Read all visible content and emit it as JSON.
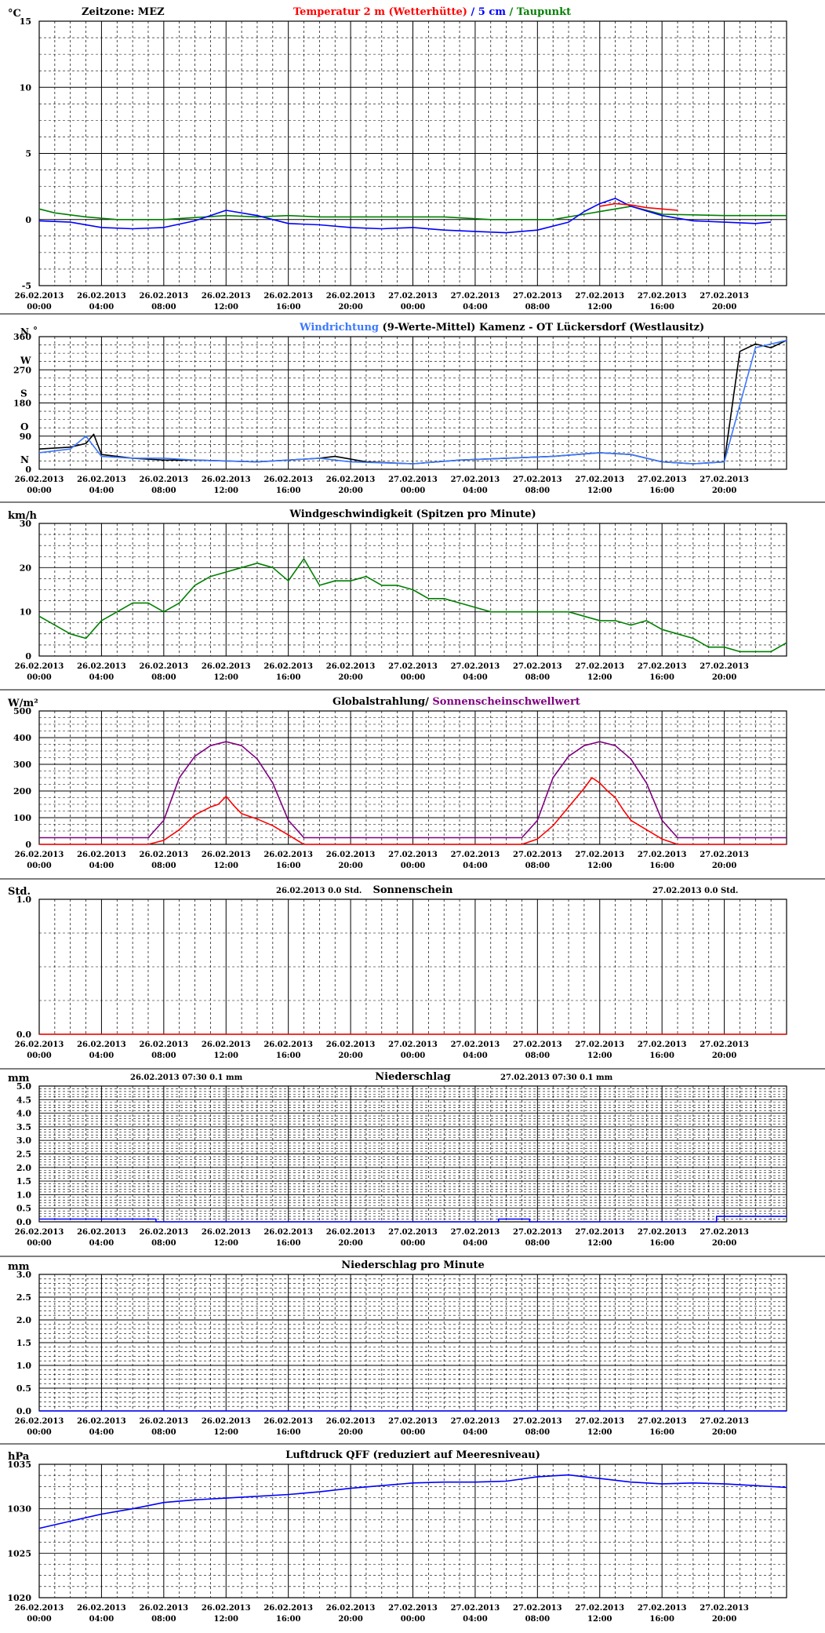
{
  "x_ticks": [
    "26.02.2013\n00:00",
    "26.02.2013\n04:00",
    "26.02.2013\n08:00",
    "26.02.2013\n12:00",
    "26.02.2013\n16:00",
    "26.02.2013\n20:00",
    "27.02.2013\n00:00",
    "27.02.2013\n04:00",
    "27.02.2013\n08:00",
    "27.02.2013\n12:00",
    "27.02.2013\n16:00",
    "27.02.2013\n20:00"
  ],
  "chart_data": [
    {
      "id": "temperature",
      "type": "line",
      "unit": "°C",
      "zone": "Zeitzone: MEZ",
      "title_parts": [
        {
          "text": "Temperatur 2 m (Wetterhütte)",
          "color": "#ff0000"
        },
        {
          "text": "  /  ",
          "color": "#0000ff"
        },
        {
          "text": "5 cm",
          "color": "#0000ff"
        },
        {
          "text": " / ",
          "color": "#008000"
        },
        {
          "text": "Taupunkt",
          "color": "#008000"
        }
      ],
      "ylim": [
        -5,
        15
      ],
      "yticks": [
        "15",
        "10",
        "5",
        "0",
        "-5"
      ],
      "x_hours": [
        0,
        48
      ],
      "grid": true,
      "series": [
        {
          "name": "Taupunkt",
          "color": "#008000",
          "x": [
            0,
            1,
            3,
            5,
            8,
            12,
            14,
            16,
            18,
            22,
            26,
            29,
            33,
            35,
            37,
            38,
            40,
            44,
            48
          ],
          "y": [
            0.8,
            0.5,
            0.2,
            0.0,
            0.0,
            0.3,
            0.2,
            0.3,
            0.2,
            0.2,
            0.2,
            0.0,
            0.0,
            0.4,
            0.8,
            1.0,
            0.4,
            0.3,
            0.3
          ]
        },
        {
          "name": "5 cm",
          "color": "#0000ff",
          "x": [
            0,
            2,
            4,
            6,
            8,
            10,
            12,
            14,
            16,
            18,
            20,
            22,
            24,
            26,
            28,
            30,
            32,
            34,
            35,
            36,
            37,
            38,
            40,
            42,
            44,
            46,
            47
          ],
          "y": [
            -0.1,
            -0.2,
            -0.6,
            -0.7,
            -0.6,
            -0.1,
            0.7,
            0.3,
            -0.3,
            -0.4,
            -0.6,
            -0.7,
            -0.6,
            -0.8,
            -0.9,
            -1.0,
            -0.8,
            -0.2,
            0.6,
            1.2,
            1.6,
            1.0,
            0.3,
            -0.1,
            -0.2,
            -0.3,
            -0.2
          ]
        },
        {
          "name": "Temperatur 2 m (Wetterhütte)",
          "color": "#ff0000",
          "x": [
            36,
            37,
            38,
            39,
            40,
            41
          ],
          "y": [
            1.0,
            1.2,
            1.1,
            0.9,
            0.8,
            0.7
          ]
        }
      ]
    },
    {
      "id": "wind-direction",
      "type": "line",
      "unit": "N",
      "title_parts": [
        {
          "text": "Windrichtung",
          "color": "#3b78ff"
        },
        {
          "text": " (9-Werte-Mittel)",
          "color": "#000000"
        },
        {
          "text": "        Kamenz - OT Lückersdorf (Westlausitz)",
          "color": "#000000"
        }
      ],
      "ylim": [
        0,
        360
      ],
      "yticks": [
        "360",
        "270",
        "180",
        "90",
        "0"
      ],
      "compass": [
        "N",
        "W",
        "S",
        "O",
        "N"
      ],
      "x_hours": [
        0,
        48
      ],
      "grid": true,
      "series": [
        {
          "name": "9-Werte-Mittel",
          "color": "#000000",
          "x": [
            0,
            2,
            3,
            3.5,
            4,
            6,
            8,
            10,
            14,
            16,
            18,
            19,
            21,
            24,
            27,
            30,
            33,
            36,
            38,
            40,
            42,
            44,
            45,
            46,
            47,
            48
          ],
          "y": [
            55,
            60,
            70,
            95,
            40,
            30,
            25,
            25,
            20,
            25,
            30,
            35,
            20,
            15,
            25,
            30,
            35,
            45,
            40,
            20,
            15,
            20,
            320,
            340,
            330,
            350
          ]
        },
        {
          "name": "Windrichtung",
          "color": "#3b78ff",
          "x": [
            0,
            2,
            3,
            4,
            6,
            8,
            10,
            14,
            16,
            18,
            20,
            24,
            27,
            30,
            33,
            36,
            38,
            40,
            42,
            44,
            46,
            48
          ],
          "y": [
            45,
            55,
            90,
            35,
            30,
            30,
            25,
            20,
            25,
            30,
            20,
            15,
            25,
            30,
            35,
            45,
            40,
            20,
            15,
            20,
            330,
            350
          ]
        }
      ]
    },
    {
      "id": "wind-speed",
      "type": "line",
      "unit": "km/h",
      "title": "Windgeschwindigkeit (Spitzen pro Minute)",
      "ylim": [
        0,
        30
      ],
      "yticks": [
        "30",
        "20",
        "10",
        "0"
      ],
      "x_hours": [
        0,
        48
      ],
      "grid": true,
      "series": [
        {
          "name": "Windgeschwindigkeit",
          "color": "#008000",
          "x": [
            0,
            1,
            2,
            3,
            4,
            5,
            6,
            7,
            8,
            9,
            10,
            11,
            12,
            13,
            14,
            15,
            16,
            17,
            18,
            19,
            20,
            21,
            22,
            23,
            24,
            25,
            26,
            27,
            28,
            29,
            30,
            31,
            32,
            33,
            34,
            35,
            36,
            37,
            38,
            39,
            40,
            41,
            42,
            43,
            44,
            45,
            46,
            47,
            48
          ],
          "y": [
            9,
            7,
            5,
            4,
            8,
            10,
            12,
            12,
            10,
            12,
            16,
            18,
            19,
            20,
            21,
            20,
            17,
            22,
            16,
            17,
            17,
            18,
            16,
            16,
            15,
            13,
            13,
            12,
            11,
            10,
            10,
            10,
            10,
            10,
            10,
            9,
            8,
            8,
            7,
            8,
            6,
            5,
            4,
            2,
            2,
            1,
            1,
            1,
            3
          ]
        }
      ]
    },
    {
      "id": "global-radiation",
      "type": "line",
      "unit": "W/m²",
      "title_parts": [
        {
          "text": "Globalstrahlung/ ",
          "color": "#000000"
        },
        {
          "text": "Sonnenscheinschwellwert",
          "color": "#800080"
        }
      ],
      "ylim": [
        0,
        500
      ],
      "yticks": [
        "500",
        "400",
        "300",
        "200",
        "100",
        "0"
      ],
      "x_hours": [
        0,
        48
      ],
      "grid": true,
      "series": [
        {
          "name": "Sonnenscheinschwellwert",
          "color": "#800080",
          "x": [
            0,
            7,
            8,
            9,
            10,
            11,
            12,
            13,
            14,
            15,
            16,
            17,
            31,
            32,
            33,
            34,
            35,
            36,
            37,
            38,
            39,
            40,
            41,
            48
          ],
          "y": [
            25,
            25,
            90,
            250,
            330,
            370,
            385,
            370,
            320,
            230,
            90,
            25,
            25,
            90,
            250,
            330,
            370,
            385,
            370,
            320,
            230,
            90,
            25,
            25
          ]
        },
        {
          "name": "Globalstrahlung",
          "color": "#ff0000",
          "x": [
            0,
            7,
            8,
            9,
            10,
            11,
            11.5,
            12,
            12.5,
            13,
            14,
            15,
            16,
            17,
            31,
            32,
            33,
            34,
            35,
            35.5,
            36,
            36.5,
            37,
            37.5,
            38,
            39,
            40,
            41,
            48
          ],
          "y": [
            0,
            0,
            15,
            55,
            110,
            140,
            150,
            180,
            145,
            115,
            95,
            70,
            35,
            0,
            0,
            20,
            70,
            140,
            210,
            250,
            230,
            200,
            175,
            130,
            90,
            55,
            20,
            0,
            0
          ]
        }
      ]
    },
    {
      "id": "sunshine",
      "type": "line",
      "unit": "Std.",
      "title": "Sonnenschein",
      "day_totals": [
        {
          "date": "26.02.2013",
          "value": "0.0",
          "unit": "Std."
        },
        {
          "date": "27.02.2013",
          "value": "0.0",
          "unit": "Std."
        }
      ],
      "ylim": [
        0,
        1.0
      ],
      "yticks": [
        "1.0",
        "0.0"
      ],
      "x_hours": [
        0,
        48
      ],
      "grid": true,
      "series": [
        {
          "name": "Sonnenschein",
          "color": "#ff0000",
          "x": [
            0,
            48
          ],
          "y": [
            0.0,
            0.0
          ]
        }
      ]
    },
    {
      "id": "precipitation",
      "type": "line",
      "unit": "mm",
      "title": "Niederschlag",
      "day_totals": [
        {
          "date": "26.02.2013 07:30",
          "value": "0.1",
          "unit": "mm"
        },
        {
          "date": "27.02.2013 07:30",
          "value": "0.1",
          "unit": "mm"
        }
      ],
      "ylim": [
        0,
        5.0
      ],
      "yticks": [
        "5.0",
        "4.5",
        "4.0",
        "3.5",
        "3.0",
        "2.5",
        "2.0",
        "1.5",
        "1.0",
        "0.5",
        "0.0"
      ],
      "x_hours": [
        0,
        48
      ],
      "grid": true,
      "series": [
        {
          "name": "Niederschlag",
          "color": "#0000ff",
          "x": [
            0,
            7.5,
            7.5,
            29.5,
            29.5,
            31.5,
            31.5,
            43.5,
            43.5,
            48
          ],
          "y": [
            0.1,
            0.1,
            0.0,
            0.0,
            0.1,
            0.1,
            0.0,
            0.0,
            0.2,
            0.2
          ]
        }
      ]
    },
    {
      "id": "precipitation-per-minute",
      "type": "line",
      "unit": "mm",
      "title": "Niederschlag pro Minute",
      "ylim": [
        0,
        3.0
      ],
      "yticks": [
        "3.0",
        "2.5",
        "2.0",
        "1.5",
        "1.0",
        "0.5",
        "0.0"
      ],
      "x_hours": [
        0,
        48
      ],
      "grid": true,
      "series": [
        {
          "name": "Niederschlag pro Minute",
          "color": "#0000ff",
          "x": [
            0,
            48
          ],
          "y": [
            0.0,
            0.0
          ]
        }
      ]
    },
    {
      "id": "pressure",
      "type": "line",
      "unit": "hPa",
      "title": "Luftdruck QFF (reduziert auf Meeresniveau)",
      "ylim": [
        1020,
        1035
      ],
      "yticks": [
        "1035",
        "1030",
        "1025",
        "1020"
      ],
      "x_hours": [
        0,
        48
      ],
      "grid": true,
      "series": [
        {
          "name": "Luftdruck QFF",
          "color": "#0000ff",
          "x": [
            0,
            2,
            4,
            6,
            8,
            10,
            12,
            14,
            16,
            18,
            20,
            22,
            24,
            26,
            28,
            30,
            32,
            34,
            36,
            38,
            40,
            42,
            44,
            46,
            48
          ],
          "y": [
            1027.8,
            1028.6,
            1029.4,
            1030.0,
            1030.7,
            1031.0,
            1031.2,
            1031.4,
            1031.6,
            1031.9,
            1032.3,
            1032.6,
            1032.9,
            1033.0,
            1033.0,
            1033.1,
            1033.6,
            1033.8,
            1033.4,
            1033.0,
            1032.8,
            1032.9,
            1032.8,
            1032.6,
            1032.4
          ]
        }
      ]
    }
  ]
}
